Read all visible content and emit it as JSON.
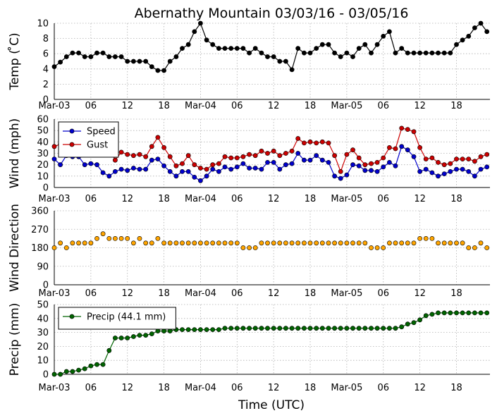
{
  "title": "Abernathy Mountain 03/03/16 - 03/05/16",
  "x_axis_title": "Time (UTC)",
  "colors": {
    "temp": "#000000",
    "speed": "#0000cc",
    "gust": "#cc0000",
    "direction": "#ffa500",
    "precip": "#006400"
  },
  "chart_data": [
    {
      "type": "line",
      "ylabel": "Temp ( ̊C)",
      "ylim": [
        0,
        10
      ],
      "yticks": [
        0,
        2,
        4,
        6,
        8,
        10
      ],
      "x_tick_labels": [
        "Mar-03",
        "06",
        "12",
        "18",
        "Mar-04",
        "06",
        "12",
        "18",
        "Mar-05",
        "06",
        "12",
        "18"
      ],
      "x_tick_hours": [
        0,
        6,
        12,
        18,
        24,
        30,
        36,
        42,
        48,
        54,
        60,
        66
      ],
      "xlim_hours": [
        0,
        71.5
      ],
      "series": [
        {
          "values": [
            4.3,
            4.9,
            5.6,
            6.1,
            6.1,
            5.6,
            5.6,
            6.1,
            6.1,
            5.6,
            5.6,
            5.6,
            5.0,
            5.0,
            5.0,
            5.0,
            4.3,
            3.8,
            3.8,
            5.0,
            5.6,
            6.7,
            7.2,
            8.9,
            10.0,
            7.8,
            7.2,
            6.7,
            6.7,
            6.7,
            6.7,
            6.7,
            6.1,
            6.7,
            6.1,
            5.6,
            5.6,
            5.0,
            5.0,
            3.9,
            6.7,
            6.1,
            6.1,
            6.7,
            7.2,
            7.2,
            6.1,
            5.6,
            6.1,
            5.6,
            6.7,
            7.2,
            6.1,
            7.2,
            8.3,
            8.9,
            6.1,
            6.7,
            6.1,
            6.1,
            6.1,
            6.1,
            6.1,
            6.1,
            6.1,
            6.1,
            7.2,
            7.8,
            8.3,
            9.4,
            10.0,
            8.9
          ]
        }
      ]
    },
    {
      "type": "line",
      "ylabel": "Wind (mph)",
      "ylim": [
        0,
        60
      ],
      "yticks": [
        0,
        10,
        20,
        30,
        40,
        50,
        60
      ],
      "x_tick_labels": [
        "Mar-03",
        "06",
        "12",
        "18",
        "Mar-04",
        "06",
        "12",
        "18",
        "Mar-05",
        "06",
        "12",
        "18"
      ],
      "x_tick_hours": [
        0,
        6,
        12,
        18,
        24,
        30,
        36,
        42,
        48,
        54,
        60,
        66
      ],
      "xlim_hours": [
        0,
        71.5
      ],
      "legend": "top-left",
      "series": [
        {
          "name": "Speed",
          "values": [
            25,
            20,
            28,
            27,
            27,
            20,
            21,
            20,
            13,
            10,
            14,
            16,
            15,
            17,
            16,
            16,
            24,
            25,
            19,
            14,
            10,
            14,
            14,
            9,
            6,
            10,
            16,
            14,
            18,
            16,
            18,
            21,
            17,
            17,
            16,
            22,
            22,
            16,
            20,
            21,
            30,
            24,
            24,
            28,
            24,
            22,
            10,
            8,
            11,
            20,
            19,
            15,
            15,
            14,
            18,
            22,
            19,
            36,
            33,
            27,
            14,
            16,
            13,
            10,
            12,
            14,
            16,
            16,
            14,
            10,
            16,
            18
          ]
        },
        {
          "name": "Gust",
          "values": [
            36,
            38,
            40,
            41,
            41,
            38,
            38,
            37,
            33,
            35,
            24,
            31,
            29,
            28,
            29,
            27,
            36,
            44,
            35,
            27,
            19,
            21,
            28,
            20,
            17,
            16,
            20,
            21,
            27,
            26,
            26,
            27,
            29,
            28,
            32,
            30,
            32,
            28,
            30,
            32,
            43,
            39,
            40,
            39,
            40,
            39,
            28,
            14,
            29,
            33,
            26,
            20,
            21,
            22,
            26,
            35,
            34,
            52,
            51,
            49,
            35,
            25,
            26,
            22,
            20,
            21,
            25,
            25,
            25,
            23,
            27,
            29
          ]
        }
      ]
    },
    {
      "type": "scatter",
      "ylabel": "Wind Direction",
      "ylim": [
        0,
        360
      ],
      "yticks": [
        0,
        90,
        180,
        270,
        360
      ],
      "x_tick_labels": [
        "Mar-03",
        "06",
        "12",
        "18",
        "Mar-04",
        "06",
        "12",
        "18",
        "Mar-05",
        "06",
        "12",
        "18"
      ],
      "x_tick_hours": [
        0,
        6,
        12,
        18,
        24,
        30,
        36,
        42,
        48,
        54,
        60,
        66
      ],
      "xlim_hours": [
        0,
        71.5
      ],
      "series": [
        {
          "values": [
            180,
            203,
            180,
            203,
            203,
            203,
            203,
            225,
            248,
            225,
            225,
            225,
            225,
            203,
            225,
            203,
            203,
            225,
            203,
            203,
            203,
            203,
            203,
            203,
            203,
            203,
            203,
            203,
            203,
            203,
            203,
            180,
            180,
            180,
            203,
            203,
            203,
            203,
            203,
            203,
            203,
            203,
            203,
            203,
            203,
            203,
            203,
            203,
            203,
            203,
            203,
            203,
            180,
            180,
            180,
            203,
            203,
            203,
            203,
            203,
            225,
            225,
            225,
            203,
            203,
            203,
            203,
            203,
            180,
            180,
            203,
            180
          ]
        }
      ]
    },
    {
      "type": "line",
      "ylabel": "Precip (mm)",
      "ylim": [
        0,
        50
      ],
      "yticks": [
        0,
        10,
        20,
        30,
        40,
        50
      ],
      "x_tick_labels": [
        "Mar-03",
        "06",
        "12",
        "18",
        "Mar-04",
        "06",
        "12",
        "18",
        "Mar-05",
        "06",
        "12",
        "18"
      ],
      "x_tick_hours": [
        0,
        6,
        12,
        18,
        24,
        30,
        36,
        42,
        48,
        54,
        60,
        66
      ],
      "xlim_hours": [
        0,
        71.5
      ],
      "legend": "top-left",
      "series": [
        {
          "name": "Precip (44.1 mm)",
          "values": [
            0,
            0,
            2,
            2,
            3,
            4,
            6,
            7,
            7,
            17,
            26,
            26,
            26,
            27,
            28,
            28,
            29,
            31,
            31,
            31,
            32,
            32,
            32,
            32,
            32,
            32,
            32,
            32,
            33,
            33,
            33,
            33,
            33,
            33,
            33,
            33,
            33,
            33,
            33,
            33,
            33,
            33,
            33,
            33,
            33,
            33,
            33,
            33,
            33,
            33,
            33,
            33,
            33,
            33,
            33,
            33,
            33,
            34,
            36,
            37,
            39,
            42,
            43,
            44,
            44,
            44,
            44,
            44,
            44,
            44,
            44,
            44
          ]
        }
      ]
    }
  ]
}
